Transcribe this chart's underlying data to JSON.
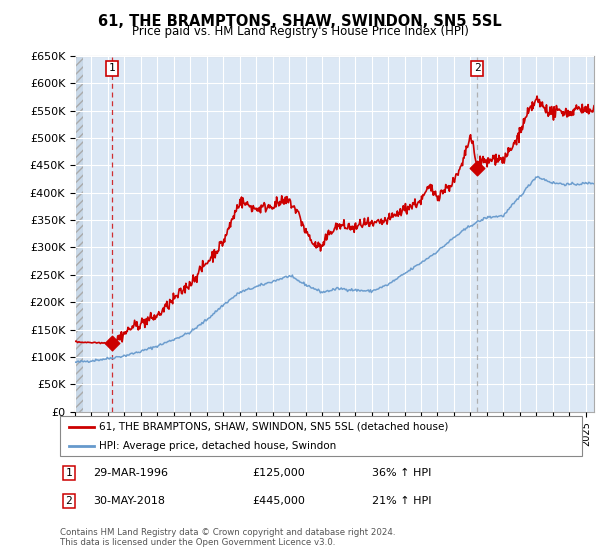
{
  "title": "61, THE BRAMPTONS, SHAW, SWINDON, SN5 5SL",
  "subtitle": "Price paid vs. HM Land Registry's House Price Index (HPI)",
  "ylim": [
    0,
    650000
  ],
  "yticks": [
    0,
    50000,
    100000,
    150000,
    200000,
    250000,
    300000,
    350000,
    400000,
    450000,
    500000,
    550000,
    600000,
    650000
  ],
  "ytick_labels": [
    "£0",
    "£50K",
    "£100K",
    "£150K",
    "£200K",
    "£250K",
    "£300K",
    "£350K",
    "£400K",
    "£450K",
    "£500K",
    "£550K",
    "£600K",
    "£650K"
  ],
  "xlim_start": 1994.0,
  "xlim_end": 2025.5,
  "sale1_x": 1996.24,
  "sale1_y": 125000,
  "sale2_x": 2018.41,
  "sale2_y": 445000,
  "sale1_label": "1",
  "sale2_label": "2",
  "sale1_date": "29-MAR-1996",
  "sale1_price": "£125,000",
  "sale1_hpi": "36% ↑ HPI",
  "sale2_date": "30-MAY-2018",
  "sale2_price": "£445,000",
  "sale2_hpi": "21% ↑ HPI",
  "legend_line1": "61, THE BRAMPTONS, SHAW, SWINDON, SN5 5SL (detached house)",
  "legend_line2": "HPI: Average price, detached house, Swindon",
  "footer": "Contains HM Land Registry data © Crown copyright and database right 2024.\nThis data is licensed under the Open Government Licence v3.0.",
  "property_color": "#cc0000",
  "hpi_color": "#6699cc",
  "background_plot": "#dce8f5",
  "grid_color": "#ffffff",
  "vline1_color": "#cc0000",
  "vline2_color": "#aaaaaa",
  "hatch_color": "#c8d8e8"
}
